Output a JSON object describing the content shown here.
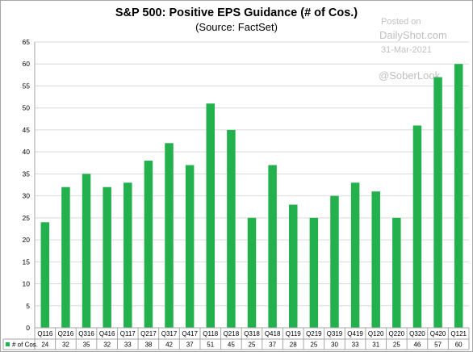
{
  "title": "S&P 500: Positive EPS Guidance (# of Cos.)",
  "subtitle": "(Source: FactSet)",
  "watermark": {
    "posted": "Posted on",
    "site": "DailyShot.com",
    "date": "31-Mar-2021",
    "handle": "@SoberLook"
  },
  "colors": {
    "bar": "#22b14c",
    "grid": "#d9d9d9",
    "axis": "#a6a6a6"
  },
  "chart_data": {
    "type": "bar",
    "title": "S&P 500: Positive EPS Guidance (# of Cos.)",
    "subtitle": "(Source: FactSet)",
    "categories": [
      "Q116",
      "Q216",
      "Q316",
      "Q416",
      "Q117",
      "Q217",
      "Q317",
      "Q417",
      "Q118",
      "Q218",
      "Q318",
      "Q418",
      "Q119",
      "Q219",
      "Q319",
      "Q419",
      "Q120",
      "Q220",
      "Q320",
      "Q420",
      "Q121"
    ],
    "series": [
      {
        "name": "# of Cos.",
        "values": [
          24,
          32,
          35,
          32,
          33,
          38,
          42,
          37,
          51,
          45,
          25,
          37,
          28,
          25,
          30,
          33,
          31,
          25,
          46,
          57,
          60
        ]
      }
    ],
    "ylim": [
      0,
      65
    ],
    "yticks": [
      0,
      5,
      10,
      15,
      20,
      25,
      30,
      35,
      40,
      45,
      50,
      55,
      60,
      65
    ],
    "grid": true,
    "data_table": true
  }
}
